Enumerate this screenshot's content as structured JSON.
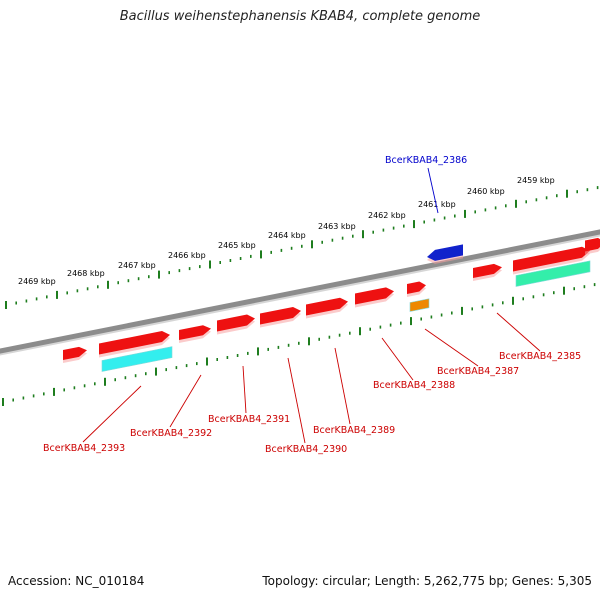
{
  "title": "Bacillus weihenstephanensis KBAB4, complete genome",
  "footer": {
    "accession": "Accession: NC_010184",
    "topology": "Topology: circular; Length: 5,262,775 bp; Genes: 5,305"
  },
  "colors": {
    "backbone": "#8c8c8c",
    "tick": "#1e7d1e",
    "gene_red": "#ee1111",
    "gene_blue": "#1122cc",
    "gene_orange": "#ee8800",
    "gene_cyan": "#33eeee",
    "gene_green": "#33eeaa",
    "label_red": "#cc0000",
    "label_blue": "#0000cc"
  },
  "scale": {
    "unit": "kbp",
    "labels": [
      "2469 kbp",
      "2468 kbp",
      "2467 kbp",
      "2466 kbp",
      "2465 kbp",
      "2464 kbp",
      "2463 kbp",
      "2462 kbp",
      "2461 kbp",
      "2460 kbp",
      "2459 kbp"
    ]
  },
  "genes": [
    {
      "label": "BcerKBAB4_2385",
      "color": "red",
      "track": "forward"
    },
    {
      "label": "BcerKBAB4_2386",
      "color": "blue",
      "track": "reverse"
    },
    {
      "label": "BcerKBAB4_2387",
      "color": "orange",
      "track": "reverse"
    },
    {
      "label": "BcerKBAB4_2388",
      "color": "red",
      "track": "forward"
    },
    {
      "label": "BcerKBAB4_2389",
      "color": "red",
      "track": "forward"
    },
    {
      "label": "BcerKBAB4_2390",
      "color": "red",
      "track": "forward"
    },
    {
      "label": "BcerKBAB4_2391",
      "color": "red",
      "track": "forward"
    },
    {
      "label": "BcerKBAB4_2392",
      "color": "red",
      "track": "forward"
    },
    {
      "label": "BcerKBAB4_2393",
      "color": "red",
      "track": "forward"
    }
  ],
  "icons": {
    "forward_gene": "right-arrow-block",
    "reverse_gene": "left-arrow-block",
    "rna_feature": "flat-bar"
  }
}
